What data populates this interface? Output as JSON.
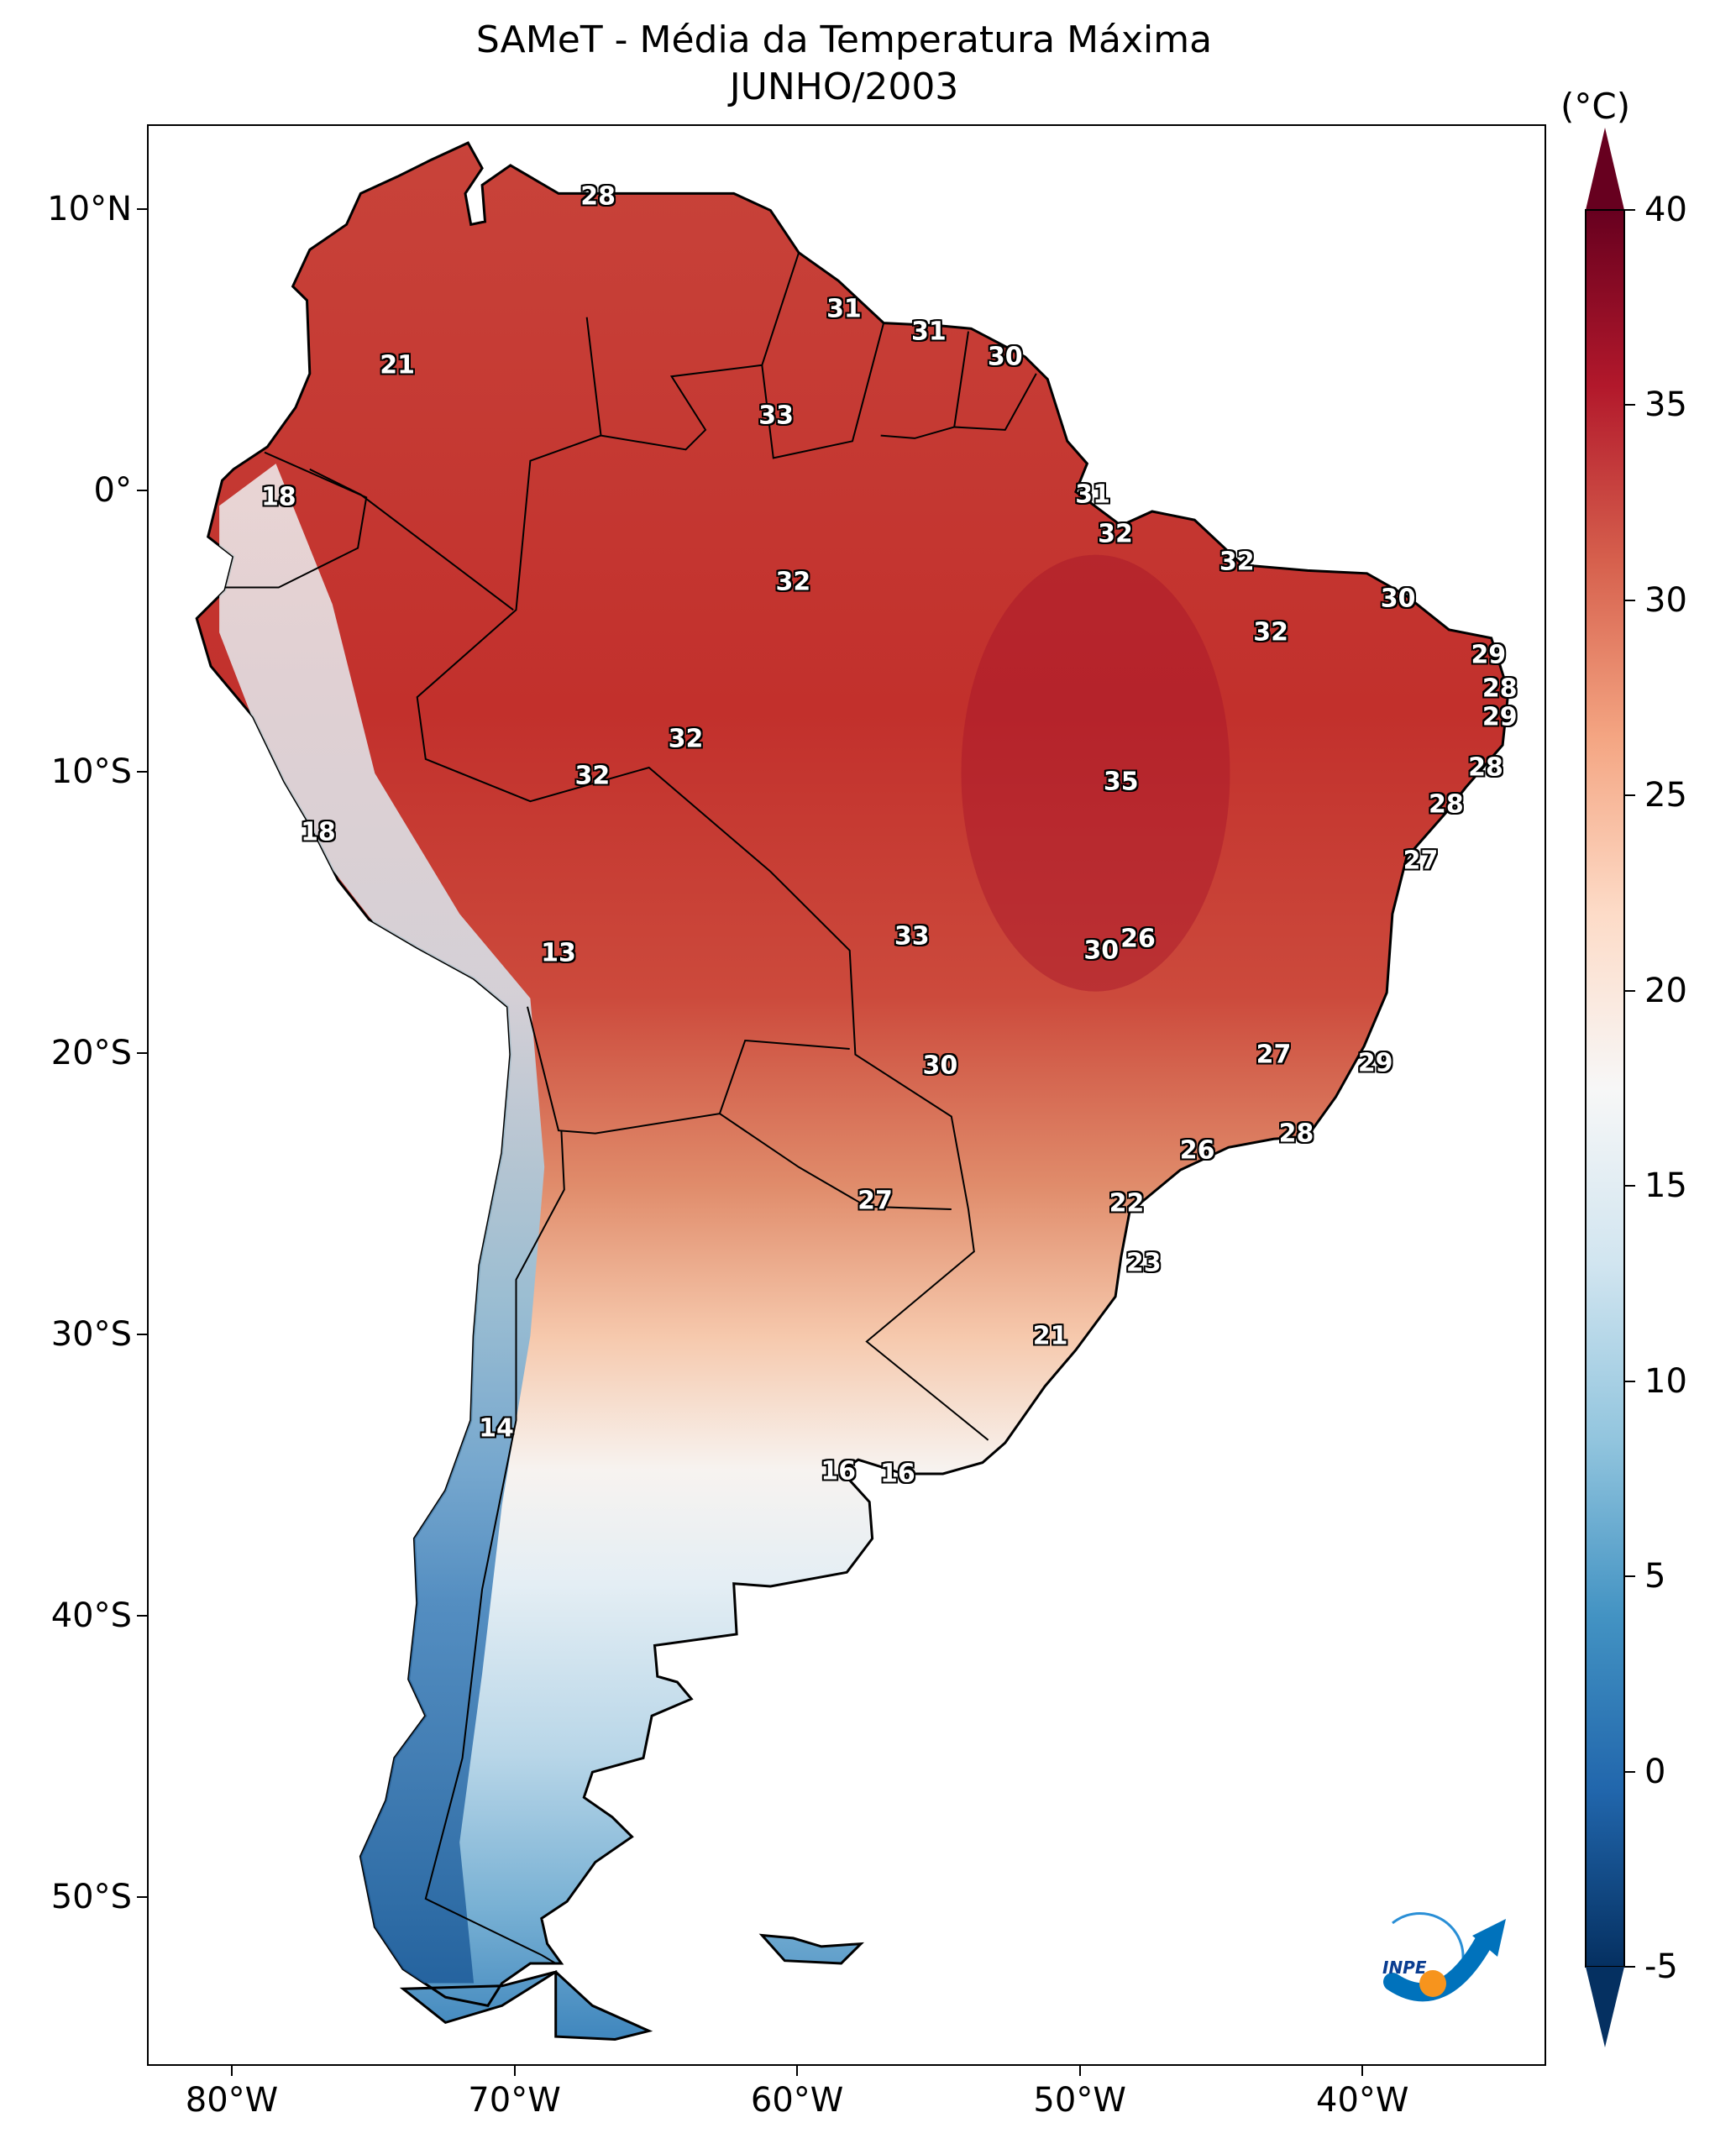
{
  "title": "SAMeT - Média da Temperatura Máxima",
  "subtitle": "JUNHO/2003",
  "map": {
    "type": "filled temperature map",
    "region": "South America",
    "lon_range": [
      -83,
      -33.5
    ],
    "lat_range": [
      -56,
      13
    ],
    "lat_labels": [
      {
        "value": 10,
        "text": "10°N"
      },
      {
        "value": 0,
        "text": "0°"
      },
      {
        "value": -10,
        "text": "10°S"
      },
      {
        "value": -20,
        "text": "20°S"
      },
      {
        "value": -30,
        "text": "30°S"
      },
      {
        "value": -40,
        "text": "40°S"
      },
      {
        "value": -50,
        "text": "50°S"
      }
    ],
    "lon_labels": [
      {
        "value": -80,
        "text": "80°W"
      },
      {
        "value": -70,
        "text": "70°W"
      },
      {
        "value": -60,
        "text": "60°W"
      },
      {
        "value": -50,
        "text": "50°W"
      },
      {
        "value": -40,
        "text": "40°W"
      }
    ],
    "contour_labels": [
      {
        "text": "28",
        "lon": -67.1,
        "lat": 10.5
      },
      {
        "text": "21",
        "lon": -74.2,
        "lat": 4.5
      },
      {
        "text": "31",
        "lon": -58.4,
        "lat": 6.5
      },
      {
        "text": "31",
        "lon": -55.4,
        "lat": 5.7
      },
      {
        "text": "30",
        "lon": -52.7,
        "lat": 4.8
      },
      {
        "text": "33",
        "lon": -60.8,
        "lat": 2.7
      },
      {
        "text": "18",
        "lon": -78.4,
        "lat": -0.2
      },
      {
        "text": "31",
        "lon": -49.6,
        "lat": -0.1
      },
      {
        "text": "32",
        "lon": -48.8,
        "lat": -1.5
      },
      {
        "text": "32",
        "lon": -60.2,
        "lat": -3.2
      },
      {
        "text": "32",
        "lon": -44.5,
        "lat": -2.5
      },
      {
        "text": "30",
        "lon": -38.8,
        "lat": -3.8
      },
      {
        "text": "32",
        "lon": -43.3,
        "lat": -5.0
      },
      {
        "text": "29",
        "lon": -35.6,
        "lat": -5.8
      },
      {
        "text": "28",
        "lon": -35.2,
        "lat": -7.0
      },
      {
        "text": "29",
        "lon": -35.2,
        "lat": -8.0
      },
      {
        "text": "32",
        "lon": -64.0,
        "lat": -8.8
      },
      {
        "text": "32",
        "lon": -67.3,
        "lat": -10.1
      },
      {
        "text": "35",
        "lon": -48.6,
        "lat": -10.3
      },
      {
        "text": "28",
        "lon": -35.7,
        "lat": -9.8
      },
      {
        "text": "28",
        "lon": -37.1,
        "lat": -11.1
      },
      {
        "text": "18",
        "lon": -77.0,
        "lat": -12.1
      },
      {
        "text": "27",
        "lon": -38.0,
        "lat": -13.1
      },
      {
        "text": "26",
        "lon": -48.0,
        "lat": -15.9
      },
      {
        "text": "33",
        "lon": -56.0,
        "lat": -15.8
      },
      {
        "text": "30",
        "lon": -49.3,
        "lat": -16.3
      },
      {
        "text": "13",
        "lon": -68.5,
        "lat": -16.4
      },
      {
        "text": "27",
        "lon": -43.2,
        "lat": -20.0
      },
      {
        "text": "29",
        "lon": -39.6,
        "lat": -20.3
      },
      {
        "text": "30",
        "lon": -55.0,
        "lat": -20.4
      },
      {
        "text": "28",
        "lon": -42.4,
        "lat": -22.8
      },
      {
        "text": "26",
        "lon": -45.9,
        "lat": -23.4
      },
      {
        "text": "27",
        "lon": -57.3,
        "lat": -25.2
      },
      {
        "text": "22",
        "lon": -48.4,
        "lat": -25.3
      },
      {
        "text": "23",
        "lon": -47.8,
        "lat": -27.4
      },
      {
        "text": "21",
        "lon": -51.1,
        "lat": -30.0
      },
      {
        "text": "14",
        "lon": -70.7,
        "lat": -33.3
      },
      {
        "text": "16",
        "lon": -58.6,
        "lat": -34.8
      },
      {
        "text": "16",
        "lon": -56.5,
        "lat": -34.9
      }
    ]
  },
  "colorbar": {
    "unit": "(°C)",
    "min": -5,
    "max": 40,
    "ticks": [
      "40",
      "35",
      "30",
      "25",
      "20",
      "15",
      "10",
      "5",
      "0",
      "-5"
    ],
    "tick_values": [
      40,
      35,
      30,
      25,
      20,
      15,
      10,
      5,
      0,
      -5
    ],
    "colormap": "RdBu_r",
    "colors": [
      "#053061",
      "#2166ac",
      "#4393c3",
      "#92c5de",
      "#d1e5f0",
      "#f7f7f7",
      "#fddbc7",
      "#f4a582",
      "#d6604d",
      "#b2182b",
      "#67001f"
    ]
  },
  "logo": {
    "text": "INPE",
    "colors": [
      "#0072bc",
      "#f7941d"
    ]
  }
}
